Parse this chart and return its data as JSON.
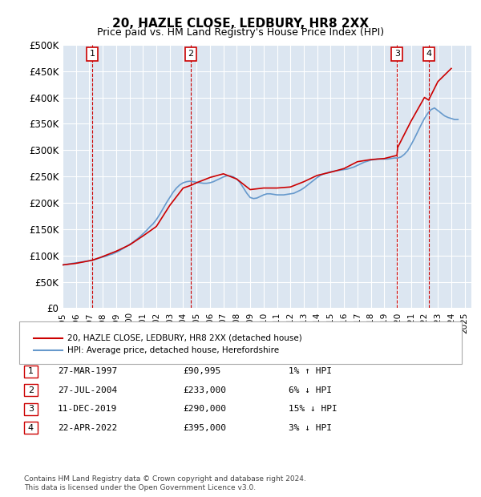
{
  "title": "20, HAZLE CLOSE, LEDBURY, HR8 2XX",
  "subtitle": "Price paid vs. HM Land Registry's House Price Index (HPI)",
  "ylabel_ticks": [
    "£0",
    "£50K",
    "£100K",
    "£150K",
    "£200K",
    "£250K",
    "£300K",
    "£350K",
    "£400K",
    "£450K",
    "£500K"
  ],
  "ytick_values": [
    0,
    50000,
    100000,
    150000,
    200000,
    250000,
    300000,
    350000,
    400000,
    450000,
    500000
  ],
  "ylim": [
    0,
    500000
  ],
  "xlim_start": 1995.0,
  "xlim_end": 2025.5,
  "background_color": "#ffffff",
  "plot_bg_color": "#dce6f1",
  "grid_color": "#ffffff",
  "legend_line1": "20, HAZLE CLOSE, LEDBURY, HR8 2XX (detached house)",
  "legend_line2": "HPI: Average price, detached house, Herefordshire",
  "red_color": "#cc0000",
  "blue_color": "#6699cc",
  "purchases": [
    {
      "num": 1,
      "date": "27-MAR-1997",
      "price": 90995,
      "pct": "1%",
      "dir": "↑",
      "year": 1997.23
    },
    {
      "num": 2,
      "date": "27-JUL-2004",
      "price": 233000,
      "pct": "6%",
      "dir": "↓",
      "year": 2004.57
    },
    {
      "num": 3,
      "date": "11-DEC-2019",
      "price": 290000,
      "pct": "15%",
      "dir": "↓",
      "year": 2019.95
    },
    {
      "num": 4,
      "date": "22-APR-2022",
      "price": 395000,
      "pct": "3%",
      "dir": "↓",
      "year": 2022.31
    }
  ],
  "footer": "Contains HM Land Registry data © Crown copyright and database right 2024.\nThis data is licensed under the Open Government Licence v3.0.",
  "hpi_years": [
    1995,
    1995.25,
    1995.5,
    1995.75,
    1996,
    1996.25,
    1996.5,
    1996.75,
    1997,
    1997.25,
    1997.5,
    1997.75,
    1998,
    1998.25,
    1998.5,
    1998.75,
    1999,
    1999.25,
    1999.5,
    1999.75,
    2000,
    2000.25,
    2000.5,
    2000.75,
    2001,
    2001.25,
    2001.5,
    2001.75,
    2002,
    2002.25,
    2002.5,
    2002.75,
    2003,
    2003.25,
    2003.5,
    2003.75,
    2004,
    2004.25,
    2004.5,
    2004.75,
    2005,
    2005.25,
    2005.5,
    2005.75,
    2006,
    2006.25,
    2006.5,
    2006.75,
    2007,
    2007.25,
    2007.5,
    2007.75,
    2008,
    2008.25,
    2008.5,
    2008.75,
    2009,
    2009.25,
    2009.5,
    2009.75,
    2010,
    2010.25,
    2010.5,
    2010.75,
    2011,
    2011.25,
    2011.5,
    2011.75,
    2012,
    2012.25,
    2012.5,
    2012.75,
    2013,
    2013.25,
    2013.5,
    2013.75,
    2014,
    2014.25,
    2014.5,
    2014.75,
    2015,
    2015.25,
    2015.5,
    2015.75,
    2016,
    2016.25,
    2016.5,
    2016.75,
    2017,
    2017.25,
    2017.5,
    2017.75,
    2018,
    2018.25,
    2018.5,
    2018.75,
    2019,
    2019.25,
    2019.5,
    2019.75,
    2020,
    2020.25,
    2020.5,
    2020.75,
    2021,
    2021.25,
    2021.5,
    2021.75,
    2022,
    2022.25,
    2022.5,
    2022.75,
    2023,
    2023.25,
    2023.5,
    2023.75,
    2024,
    2024.25,
    2024.5
  ],
  "hpi_values": [
    82000,
    83000,
    84000,
    85000,
    86000,
    87000,
    88000,
    89000,
    90000,
    91500,
    93000,
    95000,
    97000,
    99000,
    101000,
    103000,
    106000,
    109000,
    113000,
    117000,
    121000,
    125000,
    130000,
    135000,
    141000,
    147000,
    154000,
    160000,
    168000,
    178000,
    189000,
    200000,
    210000,
    220000,
    228000,
    234000,
    238000,
    240000,
    241000,
    240000,
    239000,
    238000,
    237000,
    237000,
    238000,
    240000,
    243000,
    246000,
    249000,
    251000,
    251000,
    249000,
    245000,
    238000,
    228000,
    218000,
    210000,
    208000,
    209000,
    212000,
    215000,
    217000,
    217000,
    216000,
    215000,
    215000,
    215000,
    216000,
    217000,
    218000,
    221000,
    224000,
    228000,
    233000,
    238000,
    243000,
    248000,
    252000,
    255000,
    257000,
    259000,
    260000,
    261000,
    262000,
    263000,
    264000,
    266000,
    268000,
    271000,
    274000,
    277000,
    279000,
    281000,
    282000,
    283000,
    283000,
    283000,
    283000,
    284000,
    285000,
    285000,
    287000,
    292000,
    299000,
    310000,
    322000,
    335000,
    348000,
    360000,
    370000,
    377000,
    380000,
    375000,
    370000,
    365000,
    362000,
    360000,
    358000,
    358000
  ],
  "price_years": [
    1995,
    1996,
    1997.23,
    1998,
    1999,
    2000,
    2001,
    2002,
    2003,
    2004,
    2004.57,
    2005,
    2006,
    2007,
    2008,
    2009,
    2010,
    2011,
    2012,
    2013,
    2014,
    2015,
    2016,
    2017,
    2018,
    2019,
    2019.95,
    2020,
    2021,
    2022,
    2022.31,
    2023,
    2024
  ],
  "price_values": [
    82000,
    85000,
    90995,
    98000,
    108000,
    120000,
    137000,
    155000,
    195000,
    228000,
    233000,
    238000,
    248000,
    255000,
    245000,
    225000,
    228000,
    228000,
    230000,
    240000,
    252000,
    258000,
    265000,
    278000,
    282000,
    284000,
    290000,
    305000,
    355000,
    400000,
    395000,
    430000,
    455000
  ]
}
